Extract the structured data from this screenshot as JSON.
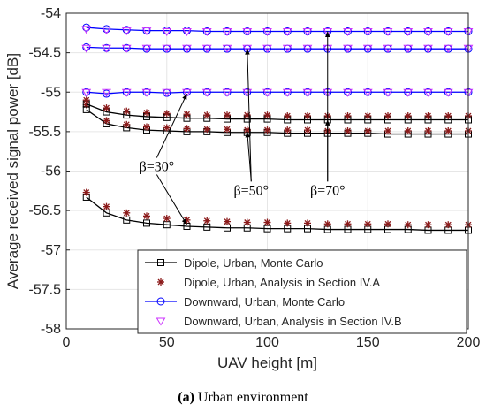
{
  "caption": {
    "label": "(a)",
    "text": "Urban environment"
  },
  "chart_data": {
    "type": "line",
    "xlabel": "UAV height [m]",
    "ylabel": "Average received signal power [dB]",
    "xlim": [
      0,
      200
    ],
    "ylim": [
      -58,
      -54
    ],
    "xticks": [
      0,
      50,
      100,
      150,
      200
    ],
    "yticks": [
      -58,
      -57.5,
      -57,
      -56.5,
      -56,
      -55.5,
      -55,
      -54.5,
      -54
    ],
    "grid": true,
    "legend_position": "bottom-right",
    "x": [
      10,
      20,
      30,
      40,
      50,
      60,
      70,
      80,
      90,
      100,
      110,
      120,
      130,
      140,
      150,
      160,
      170,
      180,
      190,
      200
    ],
    "series": [
      {
        "name": "Dipole, Urban, Monte Carlo",
        "style": "black-square-line",
        "group": "β=30°",
        "values": [
          -56.33,
          -56.53,
          -56.62,
          -56.66,
          -56.68,
          -56.7,
          -56.71,
          -56.72,
          -56.72,
          -56.73,
          -56.73,
          -56.73,
          -56.74,
          -56.74,
          -56.74,
          -56.74,
          -56.74,
          -56.75,
          -56.75,
          -56.75
        ]
      },
      {
        "name": "Dipole, Urban, Analysis in Section IV.A",
        "style": "red-asterisk",
        "group": "β=30°",
        "values": [
          -56.27,
          -56.45,
          -56.53,
          -56.57,
          -56.6,
          -56.62,
          -56.63,
          -56.64,
          -56.65,
          -56.65,
          -56.66,
          -56.66,
          -56.67,
          -56.67,
          -56.67,
          -56.67,
          -56.68,
          -56.68,
          -56.68,
          -56.68
        ]
      },
      {
        "name": "Dipole, Urban, Monte Carlo",
        "style": "black-square-line",
        "group": "β=50°",
        "values": [
          -55.22,
          -55.4,
          -55.45,
          -55.48,
          -55.49,
          -55.5,
          -55.5,
          -55.51,
          -55.51,
          -55.51,
          -55.52,
          -55.52,
          -55.52,
          -55.52,
          -55.52,
          -55.53,
          -55.53,
          -55.53,
          -55.53,
          -55.53
        ]
      },
      {
        "name": "Dipole, Urban, Analysis in Section IV.A",
        "style": "red-asterisk",
        "group": "β=50°",
        "values": [
          -55.16,
          -55.36,
          -55.41,
          -55.44,
          -55.45,
          -55.46,
          -55.47,
          -55.47,
          -55.48,
          -55.48,
          -55.48,
          -55.48,
          -55.49,
          -55.49,
          -55.49,
          -55.49,
          -55.49,
          -55.49,
          -55.49,
          -55.49
        ]
      },
      {
        "name": "Dipole, Urban, Monte Carlo",
        "style": "black-square-line",
        "group": "β=70°",
        "values": [
          -55.15,
          -55.25,
          -55.29,
          -55.31,
          -55.32,
          -55.33,
          -55.33,
          -55.34,
          -55.34,
          -55.34,
          -55.35,
          -55.35,
          -55.35,
          -55.35,
          -55.35,
          -55.35,
          -55.35,
          -55.35,
          -55.35,
          -55.35
        ]
      },
      {
        "name": "Dipole, Urban, Analysis in Section IV.A",
        "style": "red-asterisk",
        "group": "β=70°",
        "values": [
          -55.1,
          -55.2,
          -55.24,
          -55.26,
          -55.27,
          -55.28,
          -55.29,
          -55.29,
          -55.29,
          -55.29,
          -55.3,
          -55.3,
          -55.3,
          -55.3,
          -55.3,
          -55.3,
          -55.3,
          -55.3,
          -55.3,
          -55.3
        ]
      },
      {
        "name": "Downward, Urban, Monte Carlo",
        "style": "blue-circle-line",
        "group": "β=30°",
        "values": [
          -55.0,
          -55.02,
          -55.0,
          -55.0,
          -55.01,
          -55.0,
          -55.0,
          -55.0,
          -55.0,
          -55.0,
          -55.0,
          -55.0,
          -55.0,
          -55.0,
          -55.0,
          -55.0,
          -55.0,
          -55.0,
          -55.0,
          -55.0
        ]
      },
      {
        "name": "Downward, Urban, Analysis in Section IV.B",
        "style": "magenta-triangle",
        "group": "β=30°",
        "values": [
          -55.0,
          -55.0,
          -55.0,
          -55.0,
          -55.0,
          -55.0,
          -55.0,
          -55.0,
          -55.0,
          -55.0,
          -55.0,
          -55.0,
          -55.0,
          -55.0,
          -55.0,
          -55.0,
          -55.0,
          -55.0,
          -55.0,
          -55.0
        ]
      },
      {
        "name": "Downward, Urban, Monte Carlo",
        "style": "blue-circle-line",
        "group": "β=50°",
        "values": [
          -54.43,
          -54.44,
          -54.44,
          -54.45,
          -54.45,
          -54.45,
          -54.45,
          -54.45,
          -54.45,
          -54.45,
          -54.45,
          -54.45,
          -54.45,
          -54.45,
          -54.45,
          -54.45,
          -54.45,
          -54.45,
          -54.45,
          -54.45
        ]
      },
      {
        "name": "Downward, Urban, Analysis in Section IV.B",
        "style": "magenta-triangle",
        "group": "β=50°",
        "values": [
          -54.44,
          -54.44,
          -54.44,
          -54.44,
          -54.44,
          -54.44,
          -54.44,
          -54.44,
          -54.44,
          -54.44,
          -54.44,
          -54.44,
          -54.44,
          -54.44,
          -54.44,
          -54.44,
          -54.44,
          -54.44,
          -54.44,
          -54.44
        ]
      },
      {
        "name": "Downward, Urban, Monte Carlo",
        "style": "blue-circle-line",
        "group": "β=70°",
        "values": [
          -54.18,
          -54.2,
          -54.21,
          -54.22,
          -54.22,
          -54.22,
          -54.23,
          -54.23,
          -54.23,
          -54.23,
          -54.23,
          -54.23,
          -54.23,
          -54.23,
          -54.23,
          -54.23,
          -54.23,
          -54.23,
          -54.23,
          -54.23
        ]
      },
      {
        "name": "Downward, Urban, Analysis in Section IV.B",
        "style": "magenta-triangle",
        "group": "β=70°",
        "values": [
          -54.2,
          -54.21,
          -54.22,
          -54.22,
          -54.23,
          -54.23,
          -54.23,
          -54.23,
          -54.23,
          -54.23,
          -54.23,
          -54.23,
          -54.23,
          -54.23,
          -54.23,
          -54.23,
          -54.23,
          -54.23,
          -54.23,
          -54.23
        ]
      }
    ],
    "legend": [
      {
        "label": "Dipole, Urban, Monte Carlo",
        "style": "black-square-line"
      },
      {
        "label": "Dipole, Urban, Analysis in Section IV.A",
        "style": "red-asterisk"
      },
      {
        "label": "Downward, Urban, Monte Carlo",
        "style": "blue-circle-line"
      },
      {
        "label": "Downward, Urban, Analysis in Section IV.B",
        "style": "magenta-triangle"
      }
    ],
    "annotations": [
      {
        "text": "β=30°",
        "x": 45,
        "y": -56.0,
        "arrows": [
          {
            "x": 60,
            "y": -55.02
          },
          {
            "x": 60,
            "y": -56.68
          }
        ]
      },
      {
        "text": "β=50°",
        "x": 92,
        "y": -56.3,
        "arrows": [
          {
            "x": 90,
            "y": -54.45
          },
          {
            "x": 90,
            "y": -55.5
          }
        ]
      },
      {
        "text": "β=70°",
        "x": 130,
        "y": -56.3,
        "arrows": [
          {
            "x": 130,
            "y": -54.23
          },
          {
            "x": 130,
            "y": -55.35
          }
        ]
      }
    ],
    "colors": {
      "dipole_mc": "#000000",
      "dipole_analysis": "#8b1a1a",
      "downward_mc": "#0000ff",
      "downward_analysis": "#cc33ff",
      "grid": "#e6e6e6",
      "axis": "#262626"
    }
  }
}
